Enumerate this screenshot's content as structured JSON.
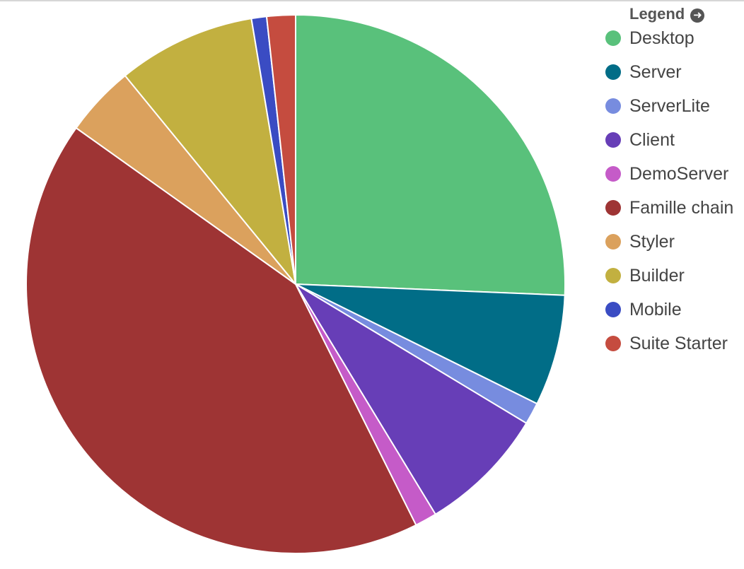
{
  "legend": {
    "title": "Legend",
    "toggle_icon": "circle-arrow-right-icon"
  },
  "chart_data": {
    "type": "pie",
    "title": "",
    "start_angle_deg": 0,
    "direction": "clockwise",
    "legend_position": "right",
    "slice_border_color": "#ffffff",
    "unit": "percent",
    "slices": [
      {
        "label": "Desktop",
        "value": 25.4,
        "color": "#59c17b"
      },
      {
        "label": "Server",
        "value": 6.6,
        "color": "#016d87"
      },
      {
        "label": "ServerLite",
        "value": 1.3,
        "color": "#778cdf"
      },
      {
        "label": "Client",
        "value": 7.6,
        "color": "#673eb7"
      },
      {
        "label": "DemoServer",
        "value": 1.3,
        "color": "#c55bc8"
      },
      {
        "label": "Famille chain",
        "value": 41.8,
        "color": "#9e3434"
      },
      {
        "label": "Styler",
        "value": 4.2,
        "color": "#dba15d"
      },
      {
        "label": "Builder",
        "value": 8.2,
        "color": "#c2b040"
      },
      {
        "label": "Mobile",
        "value": 0.9,
        "color": "#3a4cc3"
      },
      {
        "label": "Suite Starter",
        "value": 1.7,
        "color": "#c54c3f"
      }
    ]
  }
}
